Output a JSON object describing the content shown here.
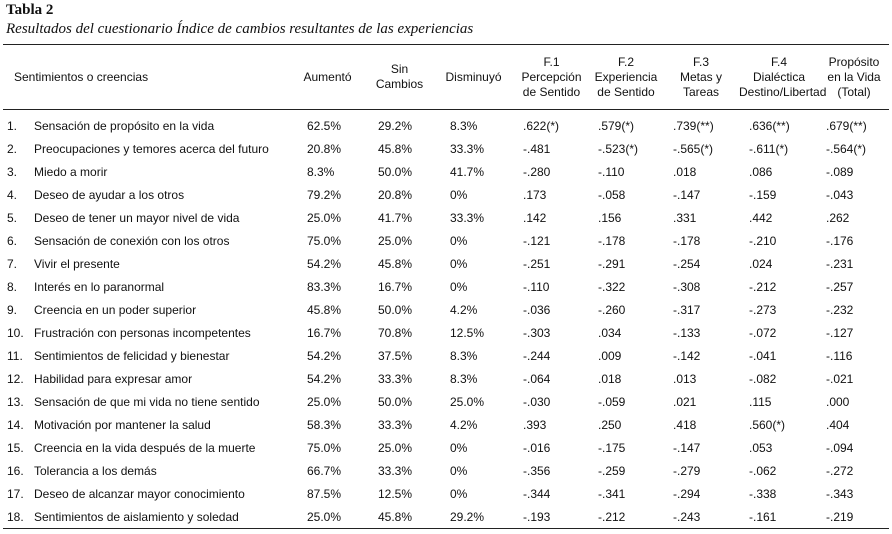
{
  "table_title": "Tabla 2",
  "table_subtitle": "Resultados del cuestionario Índice de cambios resultantes de las experiencias",
  "columns": [
    {
      "label": "Sentimientos o creencias"
    },
    {
      "label": "Aumentó"
    },
    {
      "label": "Sin\nCambios"
    },
    {
      "label": "Disminuyó"
    },
    {
      "label": "F.1\nPercepción\nde Sentido"
    },
    {
      "label": "F.2\nExperiencia\nde Sentido"
    },
    {
      "label": "F.3\nMetas y\nTareas"
    },
    {
      "label": "F.4\nDialéctica\nDestino/Libertad"
    },
    {
      "label": "Propósito\nen la Vida\n(Total)"
    }
  ],
  "rows": [
    {
      "num": "1.",
      "cells": [
        "Sensación de propósito en la vida",
        "62.5%",
        "29.2%",
        "8.3%",
        ".622(*)",
        ".579(*)",
        ".739(**)",
        ".636(**)",
        ".679(**)"
      ]
    },
    {
      "num": "2.",
      "cells": [
        "Preocupaciones y temores acerca del futuro",
        "20.8%",
        "45.8%",
        "33.3%",
        "-.481",
        "-.523(*)",
        "-.565(*)",
        "-.611(*)",
        "-.564(*)"
      ]
    },
    {
      "num": "3.",
      "cells": [
        "Miedo a morir",
        "8.3%",
        "50.0%",
        "41.7%",
        "-.280",
        "-.110",
        ".018",
        ".086",
        "-.089"
      ]
    },
    {
      "num": "4.",
      "cells": [
        "Deseo de ayudar a los otros",
        "79.2%",
        "20.8%",
        "0%",
        ".173",
        "-.058",
        "-.147",
        "-.159",
        "-.043"
      ]
    },
    {
      "num": "5.",
      "cells": [
        "Deseo de tener un mayor nivel de vida",
        "25.0%",
        "41.7%",
        "33.3%",
        ".142",
        ".156",
        ".331",
        ".442",
        ".262"
      ]
    },
    {
      "num": "6.",
      "cells": [
        "Sensación de conexión con los otros",
        "75.0%",
        "25.0%",
        "0%",
        "-.121",
        "-.178",
        "-.178",
        "-.210",
        "-.176"
      ]
    },
    {
      "num": "7.",
      "cells": [
        "Vivir el presente",
        "54.2%",
        "45.8%",
        "0%",
        "-.251",
        "-.291",
        "-.254",
        ".024",
        "-.231"
      ]
    },
    {
      "num": "8.",
      "cells": [
        "Interés en lo paranormal",
        "83.3%",
        "16.7%",
        "0%",
        "-.110",
        "-.322",
        "-.308",
        "-.212",
        "-.257"
      ]
    },
    {
      "num": "9.",
      "cells": [
        "Creencia en un poder superior",
        "45.8%",
        "50.0%",
        "4.2%",
        "-.036",
        "-.260",
        "-.317",
        "-.273",
        "-.232"
      ]
    },
    {
      "num": "10.",
      "cells": [
        "Frustración con personas incompetentes",
        "16.7%",
        "70.8%",
        "12.5%",
        "-.303",
        ".034",
        "-.133",
        "-.072",
        "-.127"
      ]
    },
    {
      "num": "11.",
      "cells": [
        "Sentimientos de felicidad y bienestar",
        "54.2%",
        "37.5%",
        "8.3%",
        "-.244",
        ".009",
        "-.142",
        "-.041",
        "-.116"
      ]
    },
    {
      "num": "12.",
      "cells": [
        "Habilidad para expresar amor",
        "54.2%",
        "33.3%",
        "8.3%",
        "-.064",
        ".018",
        ".013",
        "-.082",
        "-.021"
      ]
    },
    {
      "num": "13.",
      "cells": [
        "Sensación de que mi vida no tiene sentido",
        "25.0%",
        "50.0%",
        "25.0%",
        "-.030",
        "-.059",
        ".021",
        ".115",
        ".000"
      ]
    },
    {
      "num": "14.",
      "cells": [
        "Motivación por mantener la salud",
        "58.3%",
        "33.3%",
        "4.2%",
        ".393",
        ".250",
        ".418",
        ".560(*)",
        ".404"
      ]
    },
    {
      "num": "15.",
      "cells": [
        "Creencia en la vida después de la muerte",
        "75.0%",
        "25.0%",
        "0%",
        "-.016",
        "-.175",
        "-.147",
        ".053",
        "-.094"
      ]
    },
    {
      "num": "16.",
      "cells": [
        "Tolerancia a los demás",
        "66.7%",
        "33.3%",
        "0%",
        "-.356",
        "-.259",
        "-.279",
        "-.062",
        "-.272"
      ]
    },
    {
      "num": "17.",
      "cells": [
        "Deseo de alcanzar mayor conocimiento",
        "87.5%",
        "12.5%",
        "0%",
        "-.344",
        "-.341",
        "-.294",
        "-.338",
        "-.343"
      ]
    },
    {
      "num": "18.",
      "cells": [
        "Sentimientos de aislamiento y soledad",
        "25.0%",
        "45.8%",
        "29.2%",
        "-.193",
        "-.212",
        "-.243",
        "-.161",
        "-.219"
      ]
    }
  ]
}
